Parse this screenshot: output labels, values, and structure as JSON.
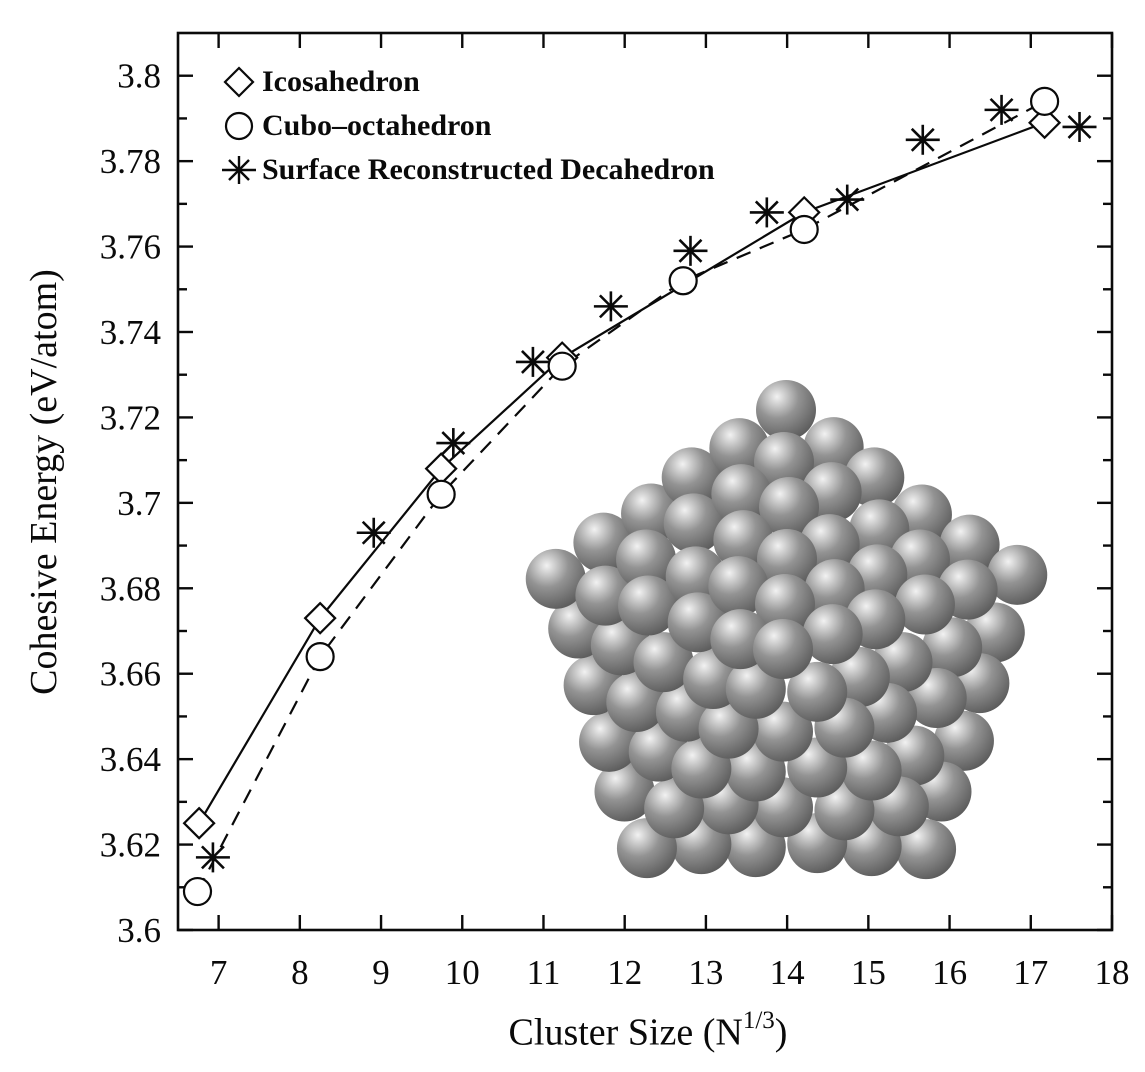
{
  "figure": {
    "background": "#ffffff",
    "ink": "#0a0a0a"
  },
  "chart_data": {
    "type": "line",
    "title": "",
    "xlabel": {
      "prefix": "Cluster Size (N",
      "superscript": "1/3",
      "suffix": ")"
    },
    "ylabel": "Cohesive Energy (eV/atom)",
    "xlim": [
      6.5,
      18
    ],
    "ylim": [
      3.6,
      3.81
    ],
    "grid": false,
    "legend_position": "upper-left",
    "x_ticks": [
      7,
      8,
      9,
      10,
      11,
      12,
      13,
      14,
      15,
      16,
      17,
      18
    ],
    "y_minor_tick_step": 0.01,
    "y_tick_labels": [
      "3.6",
      "3.62",
      "3.64",
      "3.66",
      "3.68",
      "3.7",
      "3.72",
      "3.74",
      "3.76",
      "3.78",
      "3.8"
    ],
    "series": [
      {
        "name": "Icosahedron",
        "marker": "diamond",
        "line": "solid",
        "points": [
          [
            6.76,
            3.625
          ],
          [
            8.25,
            3.673
          ],
          [
            9.74,
            3.708
          ],
          [
            11.23,
            3.734
          ],
          [
            14.21,
            3.768
          ],
          [
            17.17,
            3.789
          ]
        ]
      },
      {
        "name": "Cubo–octahedron",
        "marker": "circle",
        "line": "dashed",
        "points": [
          [
            6.74,
            3.609
          ],
          [
            8.25,
            3.664
          ],
          [
            9.74,
            3.702
          ],
          [
            11.23,
            3.732
          ],
          [
            12.72,
            3.752
          ],
          [
            14.21,
            3.764
          ],
          [
            17.17,
            3.794
          ]
        ]
      },
      {
        "name": "Surface Reconstructed Decahedron",
        "marker": "asterisk",
        "line": "none",
        "points": [
          [
            6.93,
            3.617
          ],
          [
            8.91,
            3.693
          ],
          [
            9.89,
            3.714
          ],
          [
            10.87,
            3.733
          ],
          [
            11.83,
            3.746
          ],
          [
            12.81,
            3.759
          ],
          [
            13.75,
            3.768
          ],
          [
            14.74,
            3.771
          ],
          [
            15.67,
            3.785
          ],
          [
            16.64,
            3.792
          ],
          [
            17.6,
            3.788
          ]
        ]
      }
    ]
  },
  "inset": {
    "shape": "decahedral-nanoparticle",
    "sphere_color": "#939393",
    "sphere_highlight": "#f2f2f2",
    "sphere_shadow": "#565656"
  }
}
